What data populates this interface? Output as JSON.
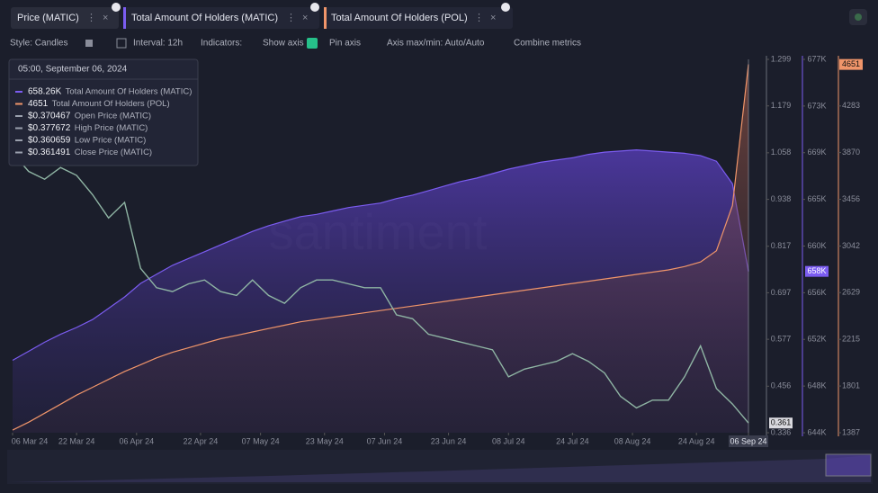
{
  "tabs": [
    "Price (MATIC)",
    "Total Amount Of Holders (MATIC)",
    "Total Amount Of Holders (POL)"
  ],
  "toolbar": [
    "Style: Candles",
    "Interval: 12h",
    "Indicators:",
    "Show axis",
    "Pin axis",
    "Axis max/min: Auto/Auto",
    "Combine metrics"
  ],
  "tooltip": {
    "title": "05:00, September 06, 2024",
    "rows": [
      {
        "value": "658.26K",
        "label": "Total Amount Of Holders (MATIC)",
        "color": "#7b5cf0"
      },
      {
        "value": "4651",
        "label": "Total Amount Of Holders (POL)",
        "color": "#f0956a"
      },
      {
        "value": "$0.370467",
        "label": "Open Price (MATIC)",
        "color": "#9aa0ad"
      },
      {
        "value": "$0.377672",
        "label": "High Price (MATIC)",
        "color": "#9aa0ad"
      },
      {
        "value": "$0.360659",
        "label": "Low Price (MATIC)",
        "color": "#9aa0ad"
      },
      {
        "value": "$0.361491",
        "label": "Close Price (MATIC)",
        "color": "#9aa0ad"
      }
    ]
  },
  "watermark": "santiment",
  "chart_data": {
    "type": "line",
    "x": [
      "2024-03-06",
      "2024-03-10",
      "2024-03-14",
      "2024-03-18",
      "2024-03-22",
      "2024-03-26",
      "2024-03-30",
      "2024-04-03",
      "2024-04-07",
      "2024-04-11",
      "2024-04-15",
      "2024-04-19",
      "2024-04-23",
      "2024-04-27",
      "2024-05-01",
      "2024-05-05",
      "2024-05-09",
      "2024-05-13",
      "2024-05-17",
      "2024-05-21",
      "2024-05-25",
      "2024-05-29",
      "2024-06-02",
      "2024-06-06",
      "2024-06-10",
      "2024-06-14",
      "2024-06-18",
      "2024-06-22",
      "2024-06-26",
      "2024-06-30",
      "2024-07-04",
      "2024-07-08",
      "2024-07-12",
      "2024-07-16",
      "2024-07-20",
      "2024-07-24",
      "2024-07-28",
      "2024-08-01",
      "2024-08-05",
      "2024-08-09",
      "2024-08-13",
      "2024-08-17",
      "2024-08-21",
      "2024-08-25",
      "2024-08-29",
      "2024-09-02",
      "2024-09-06"
    ],
    "xticks": [
      {
        "value": "2024-03-06",
        "label": "06 Mar 24"
      },
      {
        "value": "2024-03-22",
        "label": "22 Mar 24"
      },
      {
        "value": "2024-04-06",
        "label": "06 Apr 24"
      },
      {
        "value": "2024-04-22",
        "label": "22 Apr 24"
      },
      {
        "value": "2024-05-07",
        "label": "07 May 24"
      },
      {
        "value": "2024-05-23",
        "label": "23 May 24"
      },
      {
        "value": "2024-06-07",
        "label": "07 Jun 24"
      },
      {
        "value": "2024-06-23",
        "label": "23 Jun 24"
      },
      {
        "value": "2024-07-08",
        "label": "08 Jul 24"
      },
      {
        "value": "2024-07-24",
        "label": "24 Jul 24"
      },
      {
        "value": "2024-08-08",
        "label": "08 Aug 24"
      },
      {
        "value": "2024-08-24",
        "label": "24 Aug 24"
      },
      {
        "value": "2024-09-06",
        "label": "06 Sep 24"
      }
    ],
    "ylim": [
      0.336,
      1.299
    ],
    "yticks": [
      0.336,
      0.456,
      0.577,
      0.697,
      0.817,
      0.938,
      1.058,
      1.179,
      1.299
    ],
    "y2lim": [
      644000,
      677000
    ],
    "y2ticks": [
      {
        "value": 644000,
        "label": "644K"
      },
      {
        "value": 648125,
        "label": "648K"
      },
      {
        "value": 652250,
        "label": "652K"
      },
      {
        "value": 656375,
        "label": "656K"
      },
      {
        "value": 660500,
        "label": "660K"
      },
      {
        "value": 664625,
        "label": "665K"
      },
      {
        "value": 668750,
        "label": "669K"
      },
      {
        "value": 672875,
        "label": "673K"
      },
      {
        "value": 677000,
        "label": "677K"
      }
    ],
    "y3lim": [
      1387,
      4696
    ],
    "y3ticks": [
      1387,
      1801,
      2215,
      2629,
      3042,
      3456,
      3870,
      4283
    ],
    "series": [
      {
        "name": "Price (MATIC)",
        "color": "#8fb5a4",
        "axis": "y",
        "values": [
          1.058,
          1.01,
          0.99,
          1.02,
          1.0,
          0.95,
          0.89,
          0.93,
          0.76,
          0.71,
          0.7,
          0.72,
          0.73,
          0.7,
          0.69,
          0.73,
          0.69,
          0.67,
          0.71,
          0.73,
          0.73,
          0.72,
          0.71,
          0.71,
          0.64,
          0.63,
          0.59,
          0.58,
          0.57,
          0.56,
          0.55,
          0.48,
          0.5,
          0.51,
          0.52,
          0.54,
          0.52,
          0.49,
          0.43,
          0.4,
          0.42,
          0.42,
          0.48,
          0.56,
          0.45,
          0.41,
          0.361
        ]
      },
      {
        "name": "Total Amount Of Holders (MATIC)",
        "color": "#7b5cf0",
        "axis": "y2",
        "values": [
          650400,
          651200,
          652000,
          652700,
          653300,
          654000,
          655000,
          656000,
          657200,
          658000,
          658800,
          659400,
          660000,
          660600,
          661200,
          661800,
          662300,
          662700,
          663100,
          663300,
          663600,
          663900,
          664100,
          664300,
          664700,
          665000,
          665400,
          665800,
          666200,
          666500,
          666900,
          667300,
          667600,
          667900,
          668100,
          668300,
          668600,
          668800,
          668900,
          669000,
          668900,
          668800,
          668700,
          668500,
          668000,
          666000,
          658260
        ],
        "value_labels": [
          null,
          null,
          null,
          null,
          null,
          null,
          null,
          null,
          null,
          null,
          null,
          null,
          null,
          null,
          null,
          null,
          null,
          null,
          null,
          null,
          null,
          null,
          null,
          null,
          null,
          null,
          null,
          null,
          null,
          null,
          null,
          null,
          null,
          null,
          null,
          null,
          null,
          null,
          null,
          null,
          null,
          null,
          null,
          null,
          null,
          null,
          "658K"
        ]
      },
      {
        "name": "Total Amount Of Holders (POL)",
        "color": "#f0956a",
        "axis": "y3",
        "values": [
          1410,
          1480,
          1560,
          1640,
          1720,
          1790,
          1860,
          1930,
          1990,
          2050,
          2100,
          2140,
          2180,
          2220,
          2250,
          2280,
          2310,
          2340,
          2370,
          2390,
          2410,
          2430,
          2450,
          2470,
          2490,
          2510,
          2530,
          2550,
          2570,
          2590,
          2610,
          2630,
          2650,
          2670,
          2690,
          2710,
          2730,
          2750,
          2770,
          2790,
          2810,
          2830,
          2860,
          2900,
          3000,
          3400,
          4651
        ]
      }
    ]
  }
}
